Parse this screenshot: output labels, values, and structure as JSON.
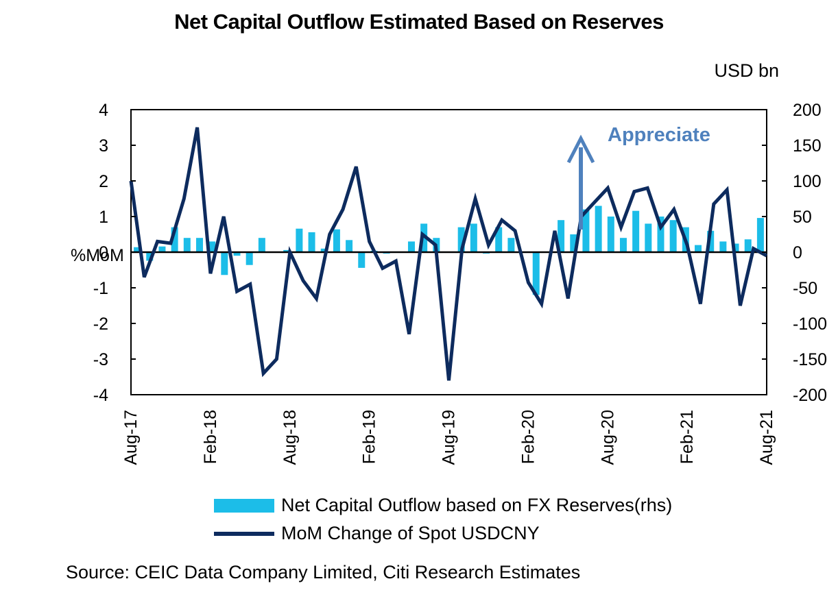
{
  "chart_data": {
    "type": "bar+line",
    "title": "Net Capital Outflow Estimated Based on Reserves",
    "left_axis": {
      "label": "%MoM",
      "ylim": [
        -4,
        4
      ],
      "ticks": [
        "4",
        "3",
        "2",
        "1",
        "0",
        "-1",
        "-2",
        "-3",
        "-4"
      ]
    },
    "right_axis": {
      "label": "USD bn",
      "ylim": [
        -200,
        200
      ],
      "ticks": [
        "200",
        "150",
        "100",
        "50",
        "0",
        "-50",
        "-100",
        "-150",
        "-200"
      ]
    },
    "x_tick_labels": [
      "Aug-17",
      "Feb-18",
      "Aug-18",
      "Feb-19",
      "Aug-19",
      "Feb-20",
      "Aug-20",
      "Feb-21",
      "Aug-21"
    ],
    "annotation": "Appreciate",
    "series": [
      {
        "name": "Net Capital Outflow based on FX Reserves(rhs)",
        "kind": "bar",
        "axis": "right",
        "color": "#1cbde8",
        "values": [
          7,
          -12,
          8,
          35,
          20,
          20,
          15,
          -32,
          -5,
          -18,
          20,
          0,
          3,
          33,
          28,
          5,
          32,
          17,
          -22,
          2,
          -2,
          0,
          15,
          40,
          20,
          0,
          35,
          40,
          -2,
          35,
          20,
          0,
          -60,
          0,
          45,
          25,
          60,
          65,
          50,
          20,
          58,
          40,
          50,
          45,
          35,
          10,
          30,
          15,
          12,
          18,
          48
        ]
      },
      {
        "name": "MoM  Change of Spot USDCNY",
        "kind": "line",
        "axis": "left",
        "color": "#0d2b5e",
        "values": [
          2.0,
          -0.7,
          0.3,
          0.25,
          1.5,
          3.5,
          -0.6,
          1.0,
          -1.1,
          -0.9,
          -3.4,
          -3.0,
          0.0,
          -0.8,
          -1.3,
          0.5,
          1.2,
          2.4,
          0.3,
          -0.45,
          -0.25,
          -2.3,
          0.5,
          0.2,
          -3.6,
          0.1,
          1.5,
          0.2,
          0.9,
          0.6,
          -0.85,
          -1.45,
          0.6,
          -1.3,
          1.0,
          1.4,
          1.8,
          0.7,
          1.7,
          1.8,
          0.7,
          1.2,
          0.2,
          -1.45,
          1.35,
          1.75,
          -1.5,
          0.1,
          -0.1
        ]
      }
    ]
  }
}
